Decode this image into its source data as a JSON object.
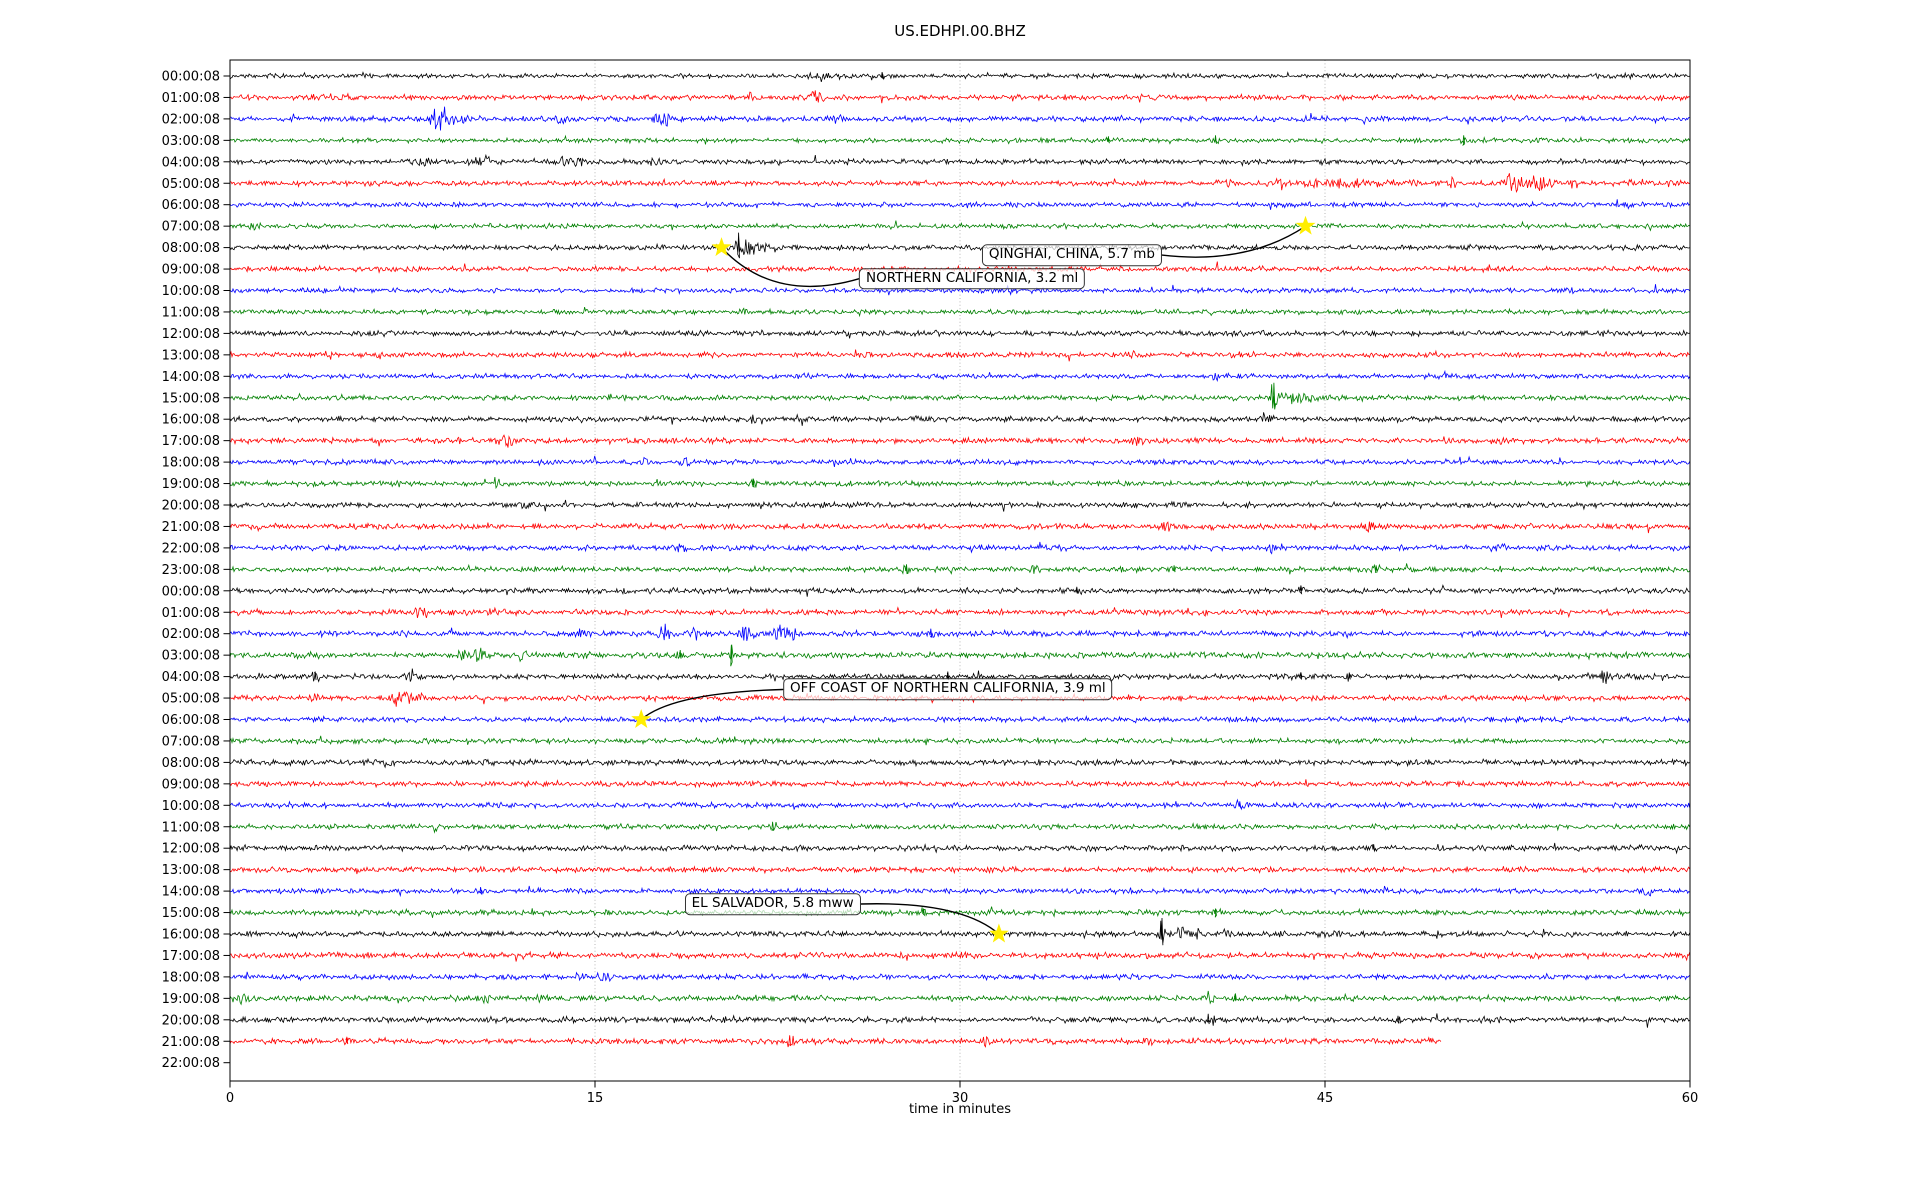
{
  "window": {
    "title": "US.EDHPI.00.BHZ"
  },
  "chart_data": {
    "type": "line",
    "subtype": "seismogram-dayplot",
    "title": "US.EDHPI.00.BHZ",
    "xlabel": "time in minutes",
    "xlim": [
      0,
      60
    ],
    "xticks": [
      0,
      15,
      30,
      45,
      60
    ],
    "grid": {
      "vertical_minutes": [
        15,
        30,
        45
      ],
      "style": "dotted",
      "color": "#a6a6a6"
    },
    "palette": [
      "#000000",
      "#ff0000",
      "#0000ff",
      "#008000"
    ],
    "star_color": "#ffee00",
    "frame_color": "#000000",
    "background": "#ffffff",
    "events_format": "[start_minute, duration_minutes, amplitude_px]",
    "rows": [
      {
        "label": "00:00:08",
        "noise": 2.0,
        "end": 60,
        "events": [
          [
            24,
            2.5,
            2.5
          ],
          [
            26.8,
            0.2,
            4
          ]
        ]
      },
      {
        "label": "01:00:08",
        "noise": 2.3,
        "end": 60,
        "events": [
          [
            4.5,
            0.8,
            4
          ],
          [
            21.4,
            0.3,
            4
          ],
          [
            24.1,
            0.4,
            9
          ]
        ]
      },
      {
        "label": "02:00:08",
        "noise": 2.3,
        "end": 60,
        "events": [
          [
            8.6,
            0.5,
            13
          ],
          [
            9.2,
            1.2,
            5
          ],
          [
            13.5,
            0.7,
            4
          ],
          [
            17.6,
            0.3,
            7
          ],
          [
            17.9,
            0.3,
            6
          ],
          [
            25,
            0.5,
            3
          ]
        ]
      },
      {
        "label": "03:00:08",
        "noise": 2.0,
        "end": 60,
        "events": [
          [
            36.1,
            0.2,
            4
          ],
          [
            40.5,
            0.2,
            5
          ],
          [
            50.7,
            0.2,
            5
          ]
        ]
      },
      {
        "label": "04:00:08",
        "noise": 2.2,
        "end": 60,
        "events": [
          [
            8,
            1.2,
            4
          ],
          [
            10.5,
            0.8,
            5
          ],
          [
            14,
            1,
            5
          ],
          [
            17.5,
            0.6,
            4
          ],
          [
            25.5,
            0.4,
            3
          ],
          [
            36,
            0.4,
            3
          ],
          [
            45,
            0.4,
            3
          ]
        ]
      },
      {
        "label": "05:00:08",
        "noise": 2.2,
        "end": 60,
        "events": [
          [
            41,
            0.5,
            4
          ],
          [
            46,
            5,
            3.5
          ],
          [
            50.3,
            0.3,
            7
          ],
          [
            52.6,
            0.5,
            12
          ],
          [
            53.6,
            1,
            7
          ],
          [
            55.2,
            0.3,
            6
          ],
          [
            57.7,
            0.3,
            5
          ],
          [
            59.3,
            0.3,
            6
          ]
        ]
      },
      {
        "label": "06:00:08",
        "noise": 2.1,
        "end": 60,
        "events": [
          [
            30.5,
            0.3,
            3
          ]
        ]
      },
      {
        "label": "07:00:08",
        "noise": 2.1,
        "end": 60,
        "events": [
          [
            1,
            0.5,
            4
          ]
        ]
      },
      {
        "label": "08:00:08",
        "noise": 2.2,
        "end": 60,
        "events": [
          [
            20.9,
            0.15,
            15
          ],
          [
            21.2,
            0.5,
            8
          ],
          [
            22,
            1,
            4
          ]
        ]
      },
      {
        "label": "09:00:08",
        "noise": 2.3,
        "end": 60,
        "events": [
          [
            32,
            0.4,
            3
          ]
        ]
      },
      {
        "label": "10:00:08",
        "noise": 2.1,
        "end": 60,
        "events": [
          [
            32,
            0.3,
            4
          ],
          [
            55,
            0.3,
            3
          ]
        ]
      },
      {
        "label": "11:00:08",
        "noise": 2.1,
        "end": 60,
        "events": [
          [
            21,
            0.3,
            3
          ]
        ]
      },
      {
        "label": "12:00:08",
        "noise": 2.3,
        "end": 60,
        "events": [
          [
            29,
            0.4,
            3
          ]
        ]
      },
      {
        "label": "13:00:08",
        "noise": 2.3,
        "end": 60,
        "events": [
          [
            4,
            0.3,
            3
          ],
          [
            37,
            0.3,
            3
          ]
        ]
      },
      {
        "label": "14:00:08",
        "noise": 2.1,
        "end": 60,
        "events": [
          [
            10.5,
            0.3,
            3
          ],
          [
            40.5,
            0.3,
            3
          ],
          [
            50,
            0.3,
            3
          ]
        ]
      },
      {
        "label": "15:00:08",
        "noise": 2.2,
        "end": 60,
        "events": [
          [
            42.9,
            0.18,
            15
          ],
          [
            43.6,
            1.2,
            6
          ],
          [
            44.5,
            0.6,
            4
          ]
        ]
      },
      {
        "label": "16:00:08",
        "noise": 2.3,
        "end": 60,
        "events": [
          [
            21.5,
            0.8,
            4
          ],
          [
            23.5,
            0.6,
            4
          ],
          [
            28.5,
            0.4,
            3
          ],
          [
            42.5,
            0.4,
            5
          ]
        ]
      },
      {
        "label": "17:00:08",
        "noise": 2.4,
        "end": 60,
        "events": [
          [
            11.3,
            0.6,
            6
          ],
          [
            37.3,
            0.5,
            4
          ],
          [
            52,
            0.4,
            4
          ]
        ]
      },
      {
        "label": "18:00:08",
        "noise": 2.2,
        "end": 60,
        "events": [
          [
            17,
            0.3,
            4
          ],
          [
            18.7,
            0.3,
            5
          ],
          [
            25.5,
            0.3,
            3
          ]
        ]
      },
      {
        "label": "19:00:08",
        "noise": 2.2,
        "end": 60,
        "events": [
          [
            7,
            0.4,
            4
          ],
          [
            11,
            0.3,
            5
          ],
          [
            21.5,
            0.25,
            5
          ]
        ]
      },
      {
        "label": "20:00:08",
        "noise": 2.4,
        "end": 60,
        "events": [
          [
            12,
            0.4,
            3
          ]
        ]
      },
      {
        "label": "21:00:08",
        "noise": 2.4,
        "end": 60,
        "events": [
          [
            5.8,
            0.4,
            4
          ],
          [
            8,
            0.4,
            4
          ],
          [
            38.5,
            0.35,
            6
          ],
          [
            46.8,
            0.4,
            6
          ]
        ]
      },
      {
        "label": "22:00:08",
        "noise": 2.3,
        "end": 60,
        "events": [
          [
            18.5,
            0.35,
            4
          ],
          [
            42.8,
            0.35,
            5
          ],
          [
            52.2,
            0.35,
            5
          ]
        ]
      },
      {
        "label": "23:00:08",
        "noise": 2.2,
        "end": 60,
        "events": [
          [
            27.8,
            0.25,
            5
          ],
          [
            33,
            0.5,
            3
          ],
          [
            38.8,
            0.25,
            4
          ],
          [
            47.1,
            0.25,
            4
          ]
        ]
      },
      {
        "label": "00:00:08",
        "noise": 2.3,
        "end": 60,
        "events": [
          [
            34.8,
            0.25,
            4
          ],
          [
            44,
            0.25,
            4
          ],
          [
            53.7,
            0.3,
            4
          ]
        ]
      },
      {
        "label": "01:00:08",
        "noise": 2.4,
        "end": 60,
        "events": [
          [
            7.8,
            0.4,
            7
          ],
          [
            10.8,
            0.4,
            4
          ]
        ]
      },
      {
        "label": "02:00:08",
        "noise": 2.4,
        "end": 60,
        "events": [
          [
            14.5,
            0.5,
            5
          ],
          [
            17.8,
            0.3,
            9
          ],
          [
            19.1,
            0.3,
            6
          ],
          [
            21.2,
            0.4,
            8
          ],
          [
            22.6,
            0.4,
            10
          ],
          [
            23.2,
            0.4,
            5
          ],
          [
            28.8,
            0.25,
            5
          ]
        ]
      },
      {
        "label": "03:00:08",
        "noise": 2.6,
        "end": 60,
        "events": [
          [
            2.8,
            0.4,
            4
          ],
          [
            9.5,
            0.5,
            6
          ],
          [
            10.3,
            0.4,
            7
          ],
          [
            12,
            0.4,
            5
          ],
          [
            18.5,
            0.25,
            5
          ],
          [
            20.6,
            0.15,
            10
          ],
          [
            25,
            0.3,
            4
          ]
        ]
      },
      {
        "label": "04:00:08",
        "noise": 2.3,
        "end": 60,
        "events": [
          [
            3.5,
            0.25,
            5
          ],
          [
            7.5,
            0.3,
            6
          ],
          [
            29.5,
            0.25,
            5
          ],
          [
            44,
            0.25,
            4
          ],
          [
            46,
            0.25,
            4
          ],
          [
            56.5,
            0.3,
            7
          ]
        ]
      },
      {
        "label": "05:00:08",
        "noise": 2.3,
        "end": 60,
        "events": [
          [
            3.5,
            0.3,
            5
          ],
          [
            7,
            0.6,
            8
          ],
          [
            7.6,
            0.4,
            6
          ]
        ]
      },
      {
        "label": "06:00:08",
        "noise": 2.2,
        "end": 60,
        "events": []
      },
      {
        "label": "07:00:08",
        "noise": 2.2,
        "end": 60,
        "events": []
      },
      {
        "label": "08:00:08",
        "noise": 2.4,
        "end": 60,
        "events": []
      },
      {
        "label": "09:00:08",
        "noise": 2.3,
        "end": 60,
        "events": []
      },
      {
        "label": "10:00:08",
        "noise": 2.2,
        "end": 60,
        "events": [
          [
            41.5,
            0.25,
            4
          ]
        ]
      },
      {
        "label": "11:00:08",
        "noise": 2.2,
        "end": 60,
        "events": [
          [
            22.3,
            0.25,
            5
          ],
          [
            53,
            0.3,
            3
          ]
        ]
      },
      {
        "label": "12:00:08",
        "noise": 2.4,
        "end": 60,
        "events": [
          [
            47,
            0.25,
            4
          ]
        ]
      },
      {
        "label": "13:00:08",
        "noise": 2.3,
        "end": 60,
        "events": []
      },
      {
        "label": "14:00:08",
        "noise": 2.2,
        "end": 60,
        "events": [
          [
            10.3,
            0.25,
            4
          ],
          [
            47.5,
            0.4,
            4
          ],
          [
            58.2,
            0.3,
            5
          ]
        ]
      },
      {
        "label": "15:00:08",
        "noise": 2.3,
        "end": 60,
        "events": [
          [
            12.5,
            0.3,
            4
          ],
          [
            28.5,
            0.25,
            4
          ],
          [
            40.5,
            0.25,
            4
          ]
        ]
      },
      {
        "label": "16:00:08",
        "noise": 2.3,
        "end": 60,
        "events": [
          [
            38.3,
            0.2,
            16
          ],
          [
            39.1,
            0.5,
            7
          ],
          [
            39.8,
            0.35,
            6
          ],
          [
            41,
            0.45,
            5
          ],
          [
            43.2,
            0.35,
            4
          ],
          [
            45.5,
            1.5,
            3
          ],
          [
            49.5,
            0.3,
            4
          ],
          [
            55,
            0.3,
            3
          ]
        ]
      },
      {
        "label": "17:00:08",
        "noise": 2.5,
        "end": 60,
        "events": []
      },
      {
        "label": "18:00:08",
        "noise": 2.3,
        "end": 60,
        "events": [
          [
            14.3,
            0.3,
            6
          ],
          [
            15.3,
            0.3,
            5
          ]
        ]
      },
      {
        "label": "19:00:08",
        "noise": 2.4,
        "end": 60,
        "events": [
          [
            0.5,
            0.8,
            5
          ],
          [
            10.5,
            0.4,
            5
          ],
          [
            12.8,
            0.4,
            4
          ],
          [
            40.3,
            0.35,
            6
          ],
          [
            41.3,
            0.25,
            4
          ]
        ]
      },
      {
        "label": "20:00:08",
        "noise": 2.5,
        "end": 60,
        "events": [
          [
            40.2,
            0.25,
            6
          ],
          [
            48,
            0.25,
            4
          ]
        ]
      },
      {
        "label": "21:00:08",
        "noise": 2.4,
        "end": 49.8,
        "events": [
          [
            4.8,
            0.25,
            4
          ],
          [
            23,
            0.25,
            6
          ],
          [
            31,
            0.3,
            5
          ],
          [
            37.7,
            0.5,
            4
          ]
        ]
      },
      {
        "label": "22:00:08",
        "noise": 0,
        "end": 0,
        "events": []
      }
    ],
    "annotations": [
      {
        "text": "NORTHERN CALIFORNIA, 3.2 ml",
        "star_minute": 20.2,
        "star_row": 8,
        "box_minute": 30.5,
        "box_row": 9.45,
        "side": "left",
        "ctrl": [
          -85,
          25
        ]
      },
      {
        "text": "QINGHAI, CHINA, 5.7 mb",
        "star_minute": 44.2,
        "star_row": 7,
        "box_minute": 34.6,
        "box_row": 8.35,
        "side": "right",
        "ctrl": [
          85,
          10
        ]
      },
      {
        "text": "OFF COAST OF NORTHERN CALIFORNIA, 3.9 ml",
        "star_minute": 16.9,
        "star_row": 30,
        "box_minute": 29.5,
        "box_row": 28.6,
        "side": "left",
        "ctrl": [
          -110,
          3
        ]
      },
      {
        "text": "EL SALVADOR, 5.8 mww",
        "star_minute": 31.6,
        "star_row": 40,
        "box_minute": 22.3,
        "box_row": 38.6,
        "side": "right",
        "ctrl": [
          100,
          -3
        ]
      }
    ]
  }
}
